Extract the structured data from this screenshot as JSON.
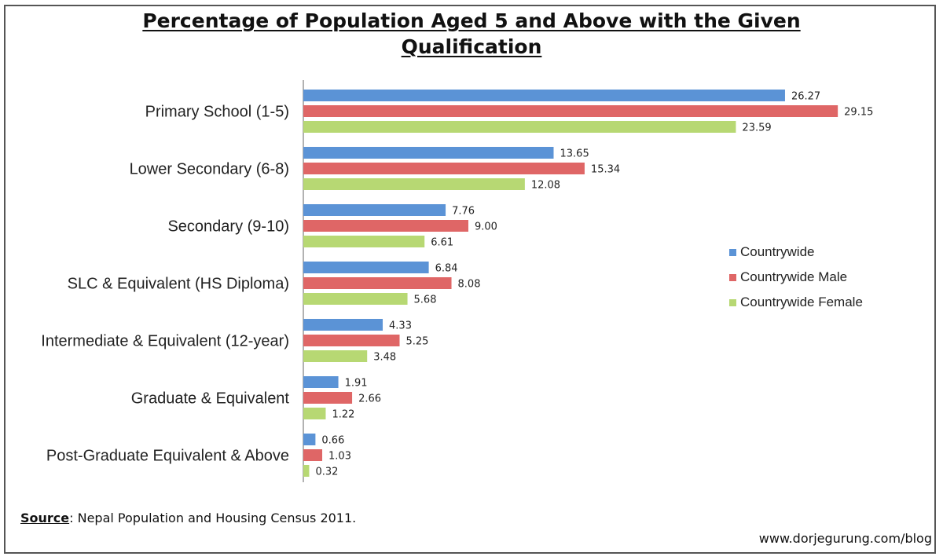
{
  "chart_data": {
    "type": "bar",
    "orientation": "horizontal",
    "title": "Percentage of Population Aged 5 and Above with the Given Qualification",
    "categories": [
      "Primary School (1-5)",
      "Lower Secondary (6-8)",
      "Secondary (9-10)",
      "SLC & Equivalent (HS Diploma)",
      "Intermediate & Equivalent (12-year)",
      "Graduate & Equivalent",
      "Post-Graduate Equivalent & Above"
    ],
    "series": [
      {
        "name": "Countrywide",
        "color": "#5b93d6",
        "values": [
          26.27,
          13.65,
          7.76,
          6.84,
          4.33,
          1.91,
          0.66
        ],
        "labels": [
          "26.27",
          "13.65",
          "7.76",
          "6.84",
          "4.33",
          "1.91",
          "0.66"
        ]
      },
      {
        "name": "Countrywide Male",
        "color": "#df6666",
        "values": [
          29.15,
          15.34,
          9.0,
          8.08,
          5.25,
          2.66,
          1.03
        ],
        "labels": [
          "29.15",
          "15.34",
          "9.00",
          "8.08",
          "5.25",
          "2.66",
          "1.03"
        ]
      },
      {
        "name": "Countrywide Female",
        "color": "#b7d873",
        "values": [
          23.59,
          12.08,
          6.61,
          5.68,
          3.48,
          1.22,
          0.32
        ],
        "labels": [
          "23.59",
          "12.08",
          "6.61",
          "5.68",
          "3.48",
          "1.22",
          "0.32"
        ]
      }
    ],
    "xlim": [
      0,
      30
    ],
    "legend": "right",
    "grid": false
  },
  "footer": {
    "source_label": "Source",
    "source_text": ": Nepal Population and Housing Census 2011.",
    "watermark": "www.dorjegurung.com/blog"
  }
}
